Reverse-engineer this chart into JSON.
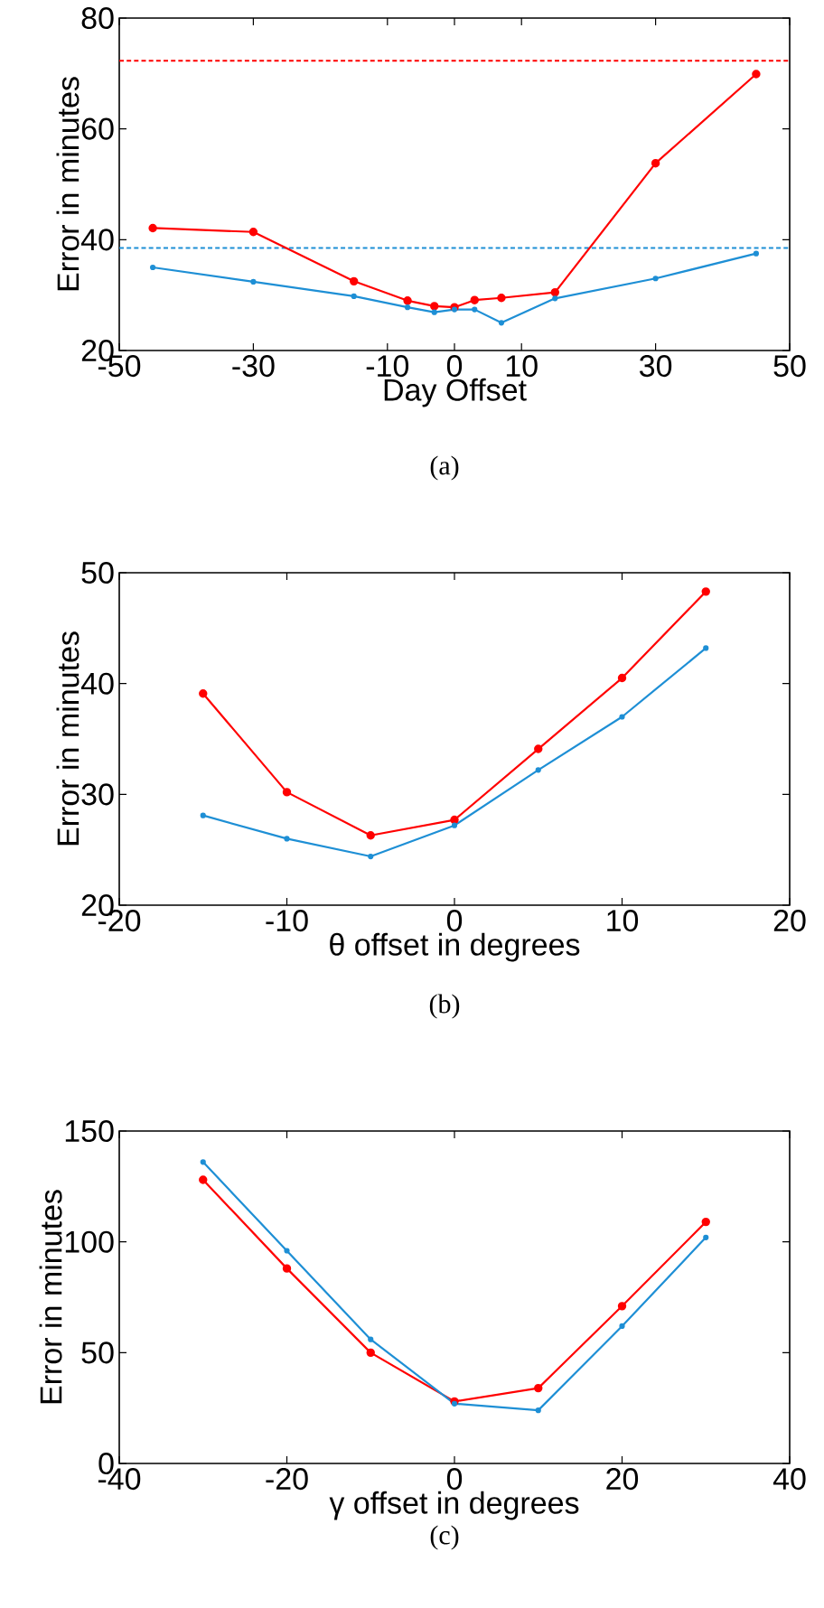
{
  "chart_data": [
    {
      "type": "line",
      "xlabel": "Day Offset",
      "ylabel": "Error in minutes",
      "marker": "circle",
      "line_style": "solid",
      "xlim": [
        -50,
        50
      ],
      "ylim": [
        20,
        80
      ],
      "xticks": [
        -50,
        -30,
        -10,
        0,
        10,
        30,
        50
      ],
      "yticks": [
        20,
        40,
        60,
        80
      ],
      "x": [
        -45,
        -30,
        -15,
        -7,
        -3,
        0,
        3,
        7,
        15,
        30,
        45
      ],
      "series": [
        {
          "color": "#ff0000",
          "values": [
            42.1,
            41.4,
            32.5,
            29.0,
            28.0,
            27.8,
            29.1,
            29.5,
            30.5,
            53.8,
            69.9
          ]
        },
        {
          "color": "#1e8fd5",
          "values": [
            35.0,
            32.4,
            29.8,
            27.8,
            26.9,
            27.4,
            27.4,
            25.0,
            29.4,
            33.0,
            37.5
          ]
        }
      ],
      "ref_lines": [
        {
          "axis": "y",
          "value": 72.3,
          "color": "#ff0000",
          "line_style": "dotted"
        },
        {
          "axis": "y",
          "value": 38.5,
          "color": "#1e8fd5",
          "line_style": "dotted"
        }
      ],
      "annotations": [
        "(a)"
      ]
    },
    {
      "type": "line",
      "xlabel": "θ offset in degrees",
      "ylabel": "Error in minutes",
      "marker": "circle",
      "line_style": "solid",
      "xlim": [
        -20,
        20
      ],
      "ylim": [
        20,
        50
      ],
      "xticks": [
        -20,
        -10,
        0,
        10,
        20
      ],
      "yticks": [
        20,
        30,
        40,
        50
      ],
      "x": [
        -15,
        -10,
        -5,
        0,
        5,
        10,
        15
      ],
      "series": [
        {
          "color": "#ff0000",
          "values": [
            39.1,
            30.2,
            26.3,
            27.7,
            34.1,
            40.5,
            48.3
          ]
        },
        {
          "color": "#1e8fd5",
          "values": [
            28.1,
            26.0,
            24.4,
            27.2,
            32.2,
            37.0,
            43.2
          ]
        }
      ],
      "annotations": [
        "(b)"
      ]
    },
    {
      "type": "line",
      "xlabel": "γ offset in degrees",
      "ylabel": "Error in minutes",
      "marker": "circle",
      "line_style": "solid",
      "xlim": [
        -40,
        40
      ],
      "ylim": [
        0,
        150
      ],
      "xticks": [
        -40,
        -20,
        0,
        20,
        40
      ],
      "yticks": [
        0,
        50,
        100,
        150
      ],
      "x": [
        -30,
        -20,
        -10,
        0,
        10,
        20,
        30
      ],
      "series": [
        {
          "color": "#ff0000",
          "values": [
            128,
            88,
            50,
            28,
            34,
            71,
            109
          ]
        },
        {
          "color": "#1e8fd5",
          "values": [
            136,
            96,
            56,
            27,
            24,
            62,
            102
          ]
        }
      ],
      "annotations": [
        "(c)"
      ]
    }
  ]
}
